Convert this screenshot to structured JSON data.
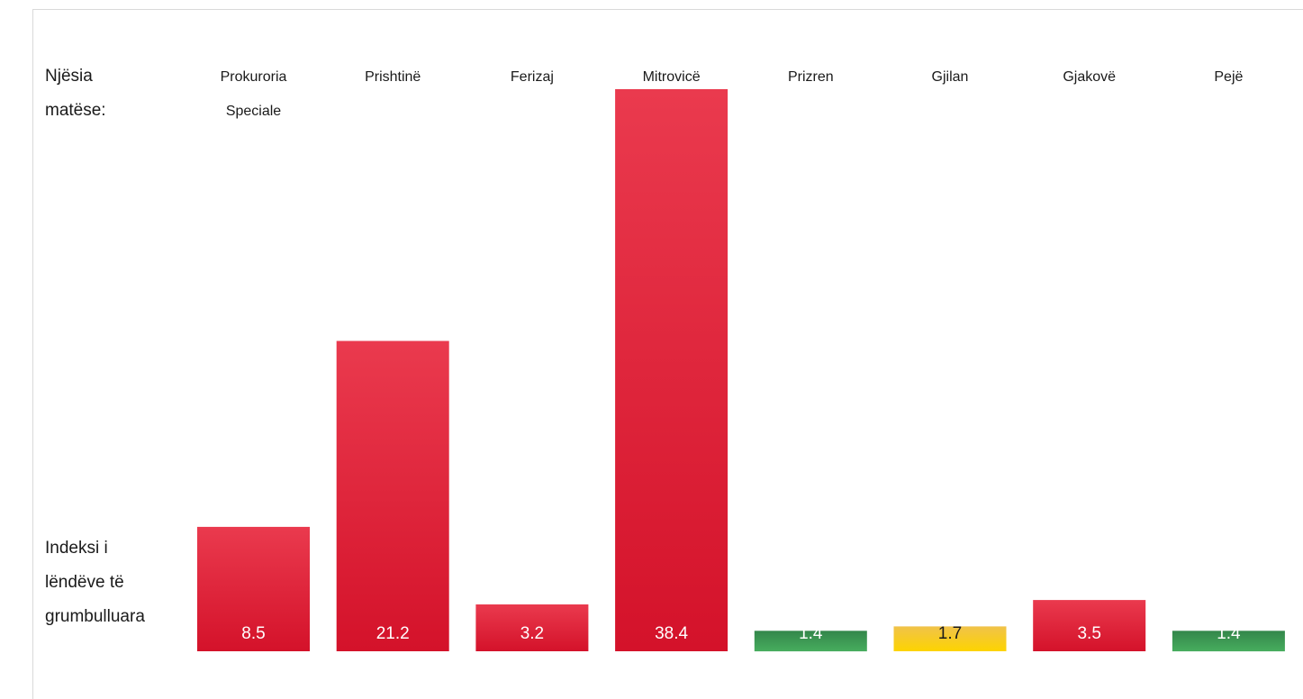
{
  "unit_label": [
    "Njësia",
    "matëse:"
  ],
  "index_label": [
    "Indeksi i",
    "lëndëve të",
    "grumbulluara"
  ],
  "colors": {
    "red_top": "#ea3a4e",
    "red_bottom": "#d4122a",
    "green_top": "#33864a",
    "green_bottom": "#47ad5e",
    "yellow_top": "#f0c24a",
    "yellow_bottom": "#fdd400",
    "label_dark": "#1a1a1a",
    "value_light": "#ffffff",
    "value_dark": "#1a1a1a"
  },
  "chart_data": {
    "type": "bar",
    "title": "",
    "xlabel": "",
    "ylabel": "",
    "categories": [
      [
        "Prokuroria",
        "Speciale"
      ],
      [
        "Prishtinë"
      ],
      [
        "Ferizaj"
      ],
      [
        "Mitrovicë"
      ],
      [
        "Prizren"
      ],
      [
        "Gjilan"
      ],
      [
        "Gjakovë"
      ],
      [
        "Pejë"
      ]
    ],
    "values": [
      8.5,
      21.2,
      3.2,
      38.4,
      1.4,
      1.7,
      3.5,
      1.4
    ],
    "value_labels": [
      "8.5",
      "21.2",
      "3.2",
      "38.4",
      "1.4",
      "1.7",
      "3.5",
      "1.4"
    ],
    "bar_colors": [
      "red",
      "red",
      "red",
      "red",
      "green",
      "yellow",
      "red",
      "green"
    ],
    "legend": "none",
    "grid": false
  }
}
